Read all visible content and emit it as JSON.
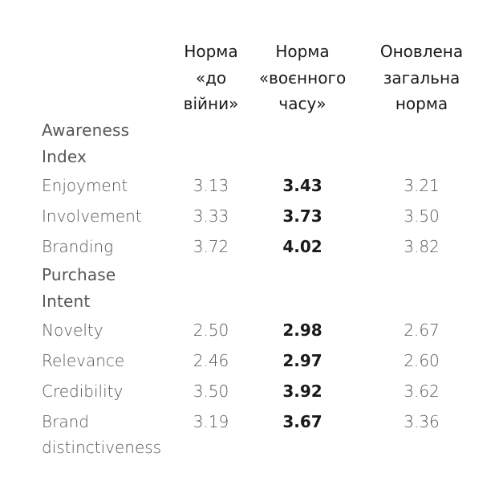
{
  "table": {
    "headers": [
      "",
      "Норма «до війни»",
      "Норма «воєнного часу»",
      "Оновлена загальна норма"
    ],
    "sections": [
      {
        "title": "Awareness Index",
        "rows": [
          {
            "label": "Enjoyment",
            "values": [
              "3.13",
              "3.43",
              "3.21"
            ]
          },
          {
            "label": "Involvement",
            "values": [
              "3.33",
              "3.73",
              "3.50"
            ]
          },
          {
            "label": "Branding",
            "values": [
              "3.72",
              "4.02",
              "3.82"
            ]
          }
        ]
      },
      {
        "title": "Purchase Intent",
        "rows": [
          {
            "label": "Novelty",
            "values": [
              "2.50",
              "2.98",
              "2.67"
            ]
          },
          {
            "label": "Relevance",
            "values": [
              "2.46",
              "2.97",
              "2.60"
            ]
          },
          {
            "label": "Credibility",
            "values": [
              "3.50",
              "3.92",
              "3.62"
            ]
          },
          {
            "label": "Brand distinctiveness",
            "values": [
              "3.19",
              "3.67",
              "3.36"
            ]
          }
        ]
      }
    ]
  }
}
